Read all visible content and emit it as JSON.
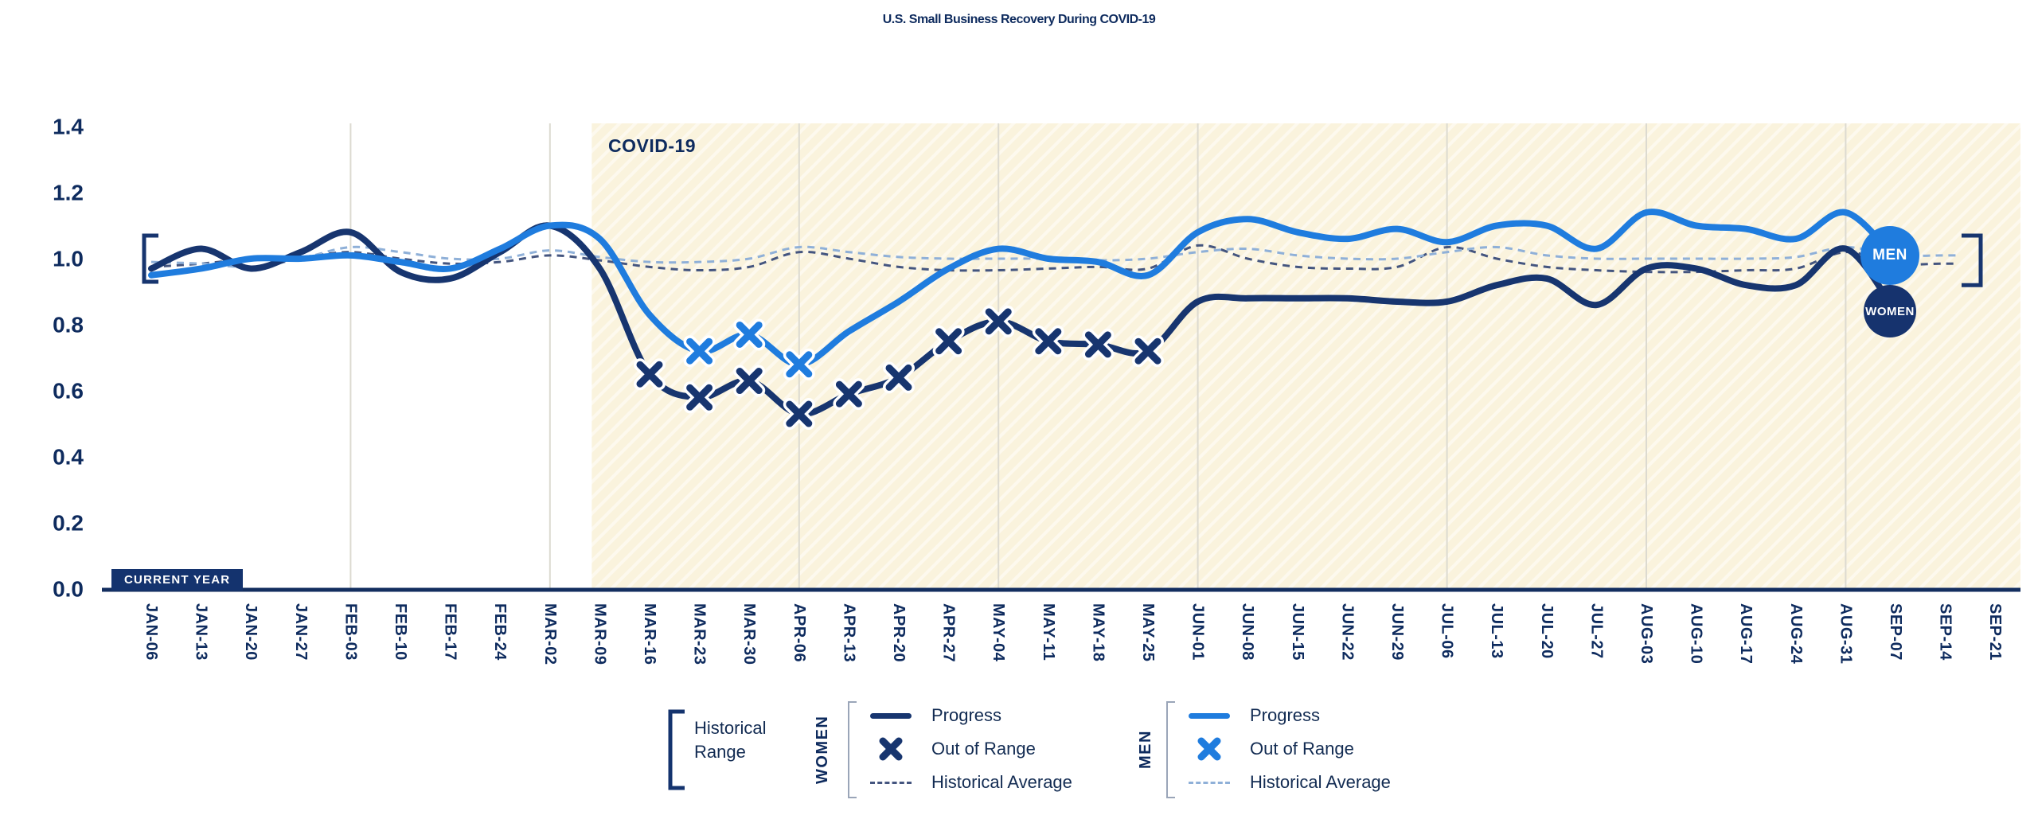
{
  "title": "U.S. Small Business Recovery During COVID-19",
  "annotations": {
    "covid_label": "COVID-19",
    "current_year": "CURRENT YEAR"
  },
  "badges": {
    "men": "MEN",
    "women": "WOMEN"
  },
  "colors": {
    "navy": "#17356F",
    "blue": "#1F7CDE",
    "navy_dash": "#44557F",
    "blue_dash": "#8FB0D8",
    "text_navy": "#0E2B5E",
    "covid_fill": "#FAF3DD",
    "covid_stripe": "rgba(255,255,255,0.5)",
    "gridline": "#DCDAD0",
    "axis": "#132E5F",
    "men_badge_fill": "#1F7CDE",
    "women_badge_fill": "#16336E"
  },
  "y_axis": {
    "tick_labels": [
      "0.0",
      "0.2",
      "0.4",
      "0.6",
      "0.8",
      "1.0",
      "1.2",
      "1.4"
    ],
    "min": 0.0,
    "max": 1.4
  },
  "legend": {
    "historical_range": "Historical Range",
    "women_group": "WOMEN",
    "men_group": "MEN",
    "items": [
      "Progress",
      "Out of Range",
      "Historical Average"
    ]
  },
  "chart_data": {
    "type": "line",
    "title": "U.S. Small Business Recovery During COVID-19",
    "xlabel": "",
    "ylabel": "",
    "ylim": [
      0,
      1.4
    ],
    "x_label_rotation": 90,
    "grid": "vertical-monthly",
    "categories": [
      "JAN-06",
      "JAN-13",
      "JAN-20",
      "JAN-27",
      "FEB-03",
      "FEB-10",
      "FEB-17",
      "FEB-24",
      "MAR-02",
      "MAR-09",
      "MAR-16",
      "MAR-23",
      "MAR-30",
      "APR-06",
      "APR-13",
      "APR-20",
      "APR-27",
      "MAY-04",
      "MAY-11",
      "MAY-18",
      "MAY-25",
      "JUN-01",
      "JUN-08",
      "JUN-15",
      "JUN-22",
      "JUN-29",
      "JUL-06",
      "JUL-13",
      "JUL-20",
      "JUL-27",
      "AUG-03",
      "AUG-10",
      "AUG-17",
      "AUG-24",
      "AUG-31",
      "SEP-07",
      "SEP-14",
      "SEP-21"
    ],
    "gridline_categories": [
      "FEB-03",
      "MAR-02",
      "APR-06",
      "MAY-04",
      "JUN-01",
      "JUL-06",
      "AUG-03",
      "AUG-31"
    ],
    "covid_region": {
      "label": "COVID-19",
      "start_category": "MAR-09",
      "extends_to_right_edge": true
    },
    "series": [
      {
        "name": "Women Progress",
        "group": "WOMEN",
        "style": "solid",
        "color_key": "navy",
        "values": [
          0.97,
          1.03,
          0.97,
          1.02,
          1.08,
          0.96,
          0.94,
          1.02,
          1.1,
          0.97,
          0.65,
          0.58,
          0.63,
          0.53,
          0.59,
          0.64,
          0.75,
          0.81,
          0.75,
          0.74,
          0.72,
          0.87,
          0.88,
          0.88,
          0.88,
          0.87,
          0.87,
          0.92,
          0.94,
          0.86,
          0.97,
          0.97,
          0.92,
          0.92,
          1.03,
          0.84
        ],
        "out_of_range_categories": [
          "MAR-16",
          "MAR-23",
          "MAR-30",
          "APR-06",
          "APR-13",
          "APR-20",
          "APR-27",
          "MAY-04",
          "MAY-11",
          "MAY-18",
          "MAY-25"
        ]
      },
      {
        "name": "Men Progress",
        "group": "MEN",
        "style": "solid",
        "color_key": "blue",
        "values": [
          0.95,
          0.97,
          1.0,
          1.0,
          1.01,
          0.99,
          0.97,
          1.03,
          1.1,
          1.06,
          0.83,
          0.72,
          0.77,
          0.68,
          0.78,
          0.87,
          0.97,
          1.03,
          1.0,
          0.99,
          0.95,
          1.08,
          1.12,
          1.08,
          1.06,
          1.09,
          1.05,
          1.1,
          1.1,
          1.03,
          1.14,
          1.1,
          1.09,
          1.06,
          1.14,
          1.0
        ],
        "out_of_range_categories": [
          "MAR-23",
          "MAR-30",
          "APR-06"
        ]
      },
      {
        "name": "Women Historical Average",
        "group": "WOMEN",
        "style": "dashed",
        "color_key": "navy_dash",
        "values": [
          0.975,
          0.985,
          1.0,
          1.005,
          1.02,
          1.0,
          0.985,
          0.99,
          1.01,
          0.995,
          0.975,
          0.965,
          0.975,
          1.02,
          1.0,
          0.975,
          0.965,
          0.965,
          0.97,
          0.975,
          0.97,
          1.04,
          1.0,
          0.975,
          0.97,
          0.975,
          1.035,
          1.0,
          0.975,
          0.965,
          0.96,
          0.96,
          0.965,
          0.97,
          1.02,
          0.985,
          0.985,
          0.985
        ]
      },
      {
        "name": "Men Historical Average",
        "group": "MEN",
        "style": "dashed",
        "color_key": "blue_dash",
        "values": [
          0.99,
          0.985,
          0.975,
          1.0,
          1.035,
          1.02,
          1.0,
          1.0,
          1.025,
          1.005,
          0.99,
          0.99,
          1.0,
          1.035,
          1.02,
          1.005,
          1.0,
          1.0,
          1.0,
          0.995,
          1.0,
          1.02,
          1.03,
          1.01,
          1.0,
          1.0,
          1.02,
          1.035,
          1.01,
          1.0,
          1.0,
          1.0,
          1.0,
          1.005,
          1.035,
          1.01,
          1.01,
          1.01
        ]
      }
    ],
    "historical_range_brackets": {
      "left": {
        "from": 0.93,
        "to": 1.07
      },
      "right": {
        "from": 0.92,
        "to": 1.07
      }
    },
    "end_badges": [
      {
        "label": "MEN",
        "category": "SEP-07",
        "value": 1.0
      },
      {
        "label": "WOMEN",
        "category": "SEP-07",
        "value": 0.84
      }
    ],
    "legend_position": "bottom-center"
  }
}
